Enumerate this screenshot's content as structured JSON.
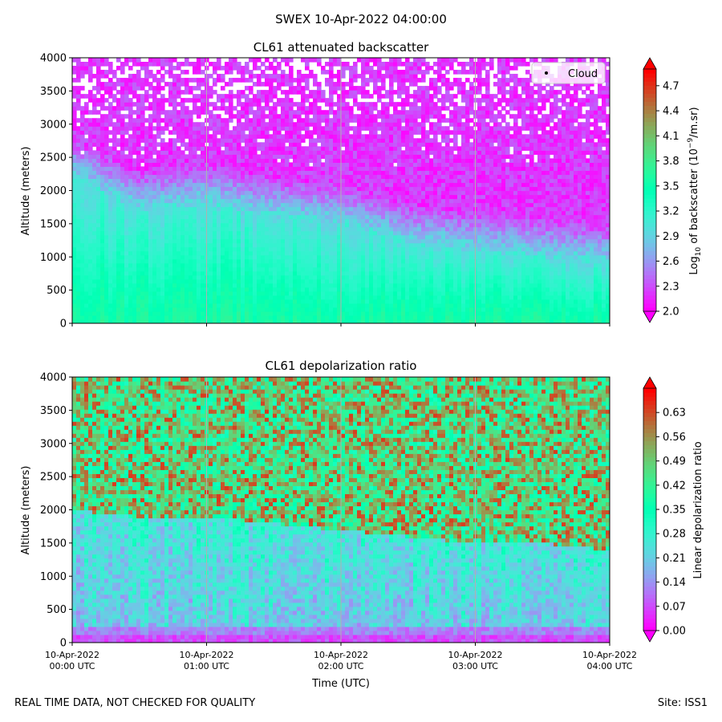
{
  "suptitle": "SWEX 10-Apr-2022 04:00:00",
  "footer": {
    "left": "REAL TIME DATA, NOT CHECKED FOR QUALITY",
    "right": "Site: ISS1"
  },
  "chart_data": [
    {
      "type": "heatmap",
      "title": "CL61 attenuated backscatter",
      "ylabel": "Altitude (meters)",
      "xlabel": "",
      "ylim": [
        0,
        4000
      ],
      "yticks": [
        0,
        500,
        1000,
        1500,
        2000,
        2500,
        3000,
        3500,
        4000
      ],
      "xticks": [
        "10-Apr-2022\n00:00 UTC",
        "10-Apr-2022\n01:00 UTC",
        "10-Apr-2022\n02:00 UTC",
        "10-Apr-2022\n03:00 UTC",
        "10-Apr-2022\n04:00 UTC"
      ],
      "show_xticklabels": false,
      "grid": "vertical at hourly ticks",
      "legend": {
        "label": "Cloud",
        "placement": "top-right"
      },
      "colorbar": {
        "label": "Log10 of backscatter (10^-9/m.sr)",
        "label_main": "Log",
        "label_sub": "10",
        "label_mid": " of backscatter (10",
        "label_sup": "−9",
        "label_end": "/m.sr)",
        "vmin": 2.0,
        "vmax": 4.9,
        "ticks": [
          "2.0",
          "2.3",
          "2.6",
          "2.9",
          "3.2",
          "3.5",
          "3.8",
          "4.1",
          "4.4",
          "4.7"
        ],
        "tick_values": [
          2.0,
          2.3,
          2.6,
          2.9,
          3.2,
          3.5,
          3.8,
          4.1,
          4.4,
          4.7
        ],
        "extend": "both",
        "colormap": "rainbow"
      },
      "profile_summary": {
        "hours": [
          0,
          0.5,
          1,
          1.5,
          2,
          2.5,
          3,
          3.5,
          4
        ],
        "aerosol_top_m": [
          2200,
          1700,
          1800,
          1600,
          1500,
          1200,
          1100,
          1000,
          900
        ],
        "surface_value": 3.6,
        "aerosol_top_value": 3.0,
        "upper_value": 2.2
      }
    },
    {
      "type": "heatmap",
      "title": "CL61 depolarization ratio",
      "ylabel": "Altitude (meters)",
      "xlabel": "Time (UTC)",
      "ylim": [
        0,
        4000
      ],
      "yticks": [
        0,
        500,
        1000,
        1500,
        2000,
        2500,
        3000,
        3500,
        4000
      ],
      "xticks": [
        "10-Apr-2022\n00:00 UTC",
        "10-Apr-2022\n01:00 UTC",
        "10-Apr-2022\n02:00 UTC",
        "10-Apr-2022\n03:00 UTC",
        "10-Apr-2022\n04:00 UTC"
      ],
      "show_xticklabels": true,
      "grid": "vertical at hourly ticks",
      "colorbar": {
        "label": "Linear depolarization ratio",
        "vmin": 0.0,
        "vmax": 0.7,
        "ticks": [
          "0.00",
          "0.07",
          "0.14",
          "0.21",
          "0.28",
          "0.35",
          "0.42",
          "0.49",
          "0.56",
          "0.63"
        ],
        "tick_values": [
          0.0,
          0.07,
          0.14,
          0.21,
          0.28,
          0.35,
          0.42,
          0.49,
          0.56,
          0.63
        ],
        "extend": "both",
        "colormap": "rainbow"
      },
      "profile_summary": {
        "hours": [
          0,
          0.5,
          1,
          1.5,
          2,
          2.5,
          3,
          3.5,
          4
        ],
        "boundary_m": [
          2000,
          1900,
          1900,
          1800,
          1700,
          1600,
          1500,
          1500,
          1400
        ],
        "surface_value": 0.03,
        "low_value": 0.2,
        "upper_value": 0.48
      }
    }
  ]
}
